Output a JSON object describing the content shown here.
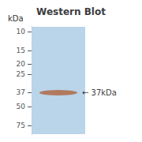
{
  "chart_data": {
    "type": "scatter",
    "title": "Western Blot",
    "y_label": "kDa",
    "categories": [
      null
    ],
    "values": [
      37
    ],
    "colors": [
      "#bad4ea",
      "#b07050"
    ],
    "annotations": [
      {
        "text": "← 37kDa",
        "y": 37
      }
    ],
    "log": "y",
    "ylim": [
      9,
      90
    ],
    "yticks": [
      10,
      15,
      20,
      25,
      37,
      50,
      75
    ],
    "grid": false,
    "tick_labels": "y"
  }
}
